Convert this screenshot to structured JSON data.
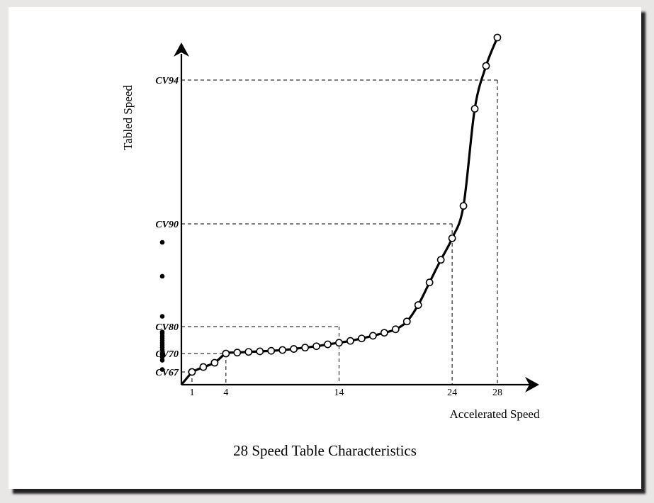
{
  "chart_data": {
    "type": "line",
    "title": "28 Speed Table Characteristics",
    "xlabel": "Accelerated Speed",
    "ylabel": "Tabled Speed",
    "x_ticks": [
      1,
      4,
      14,
      24,
      28
    ],
    "y_ticks": [
      {
        "label": "CV67",
        "value": 67
      },
      {
        "label": "CV70",
        "value": 70
      },
      {
        "label": "CV80",
        "value": 80
      },
      {
        "label": "CV90",
        "value": 90
      },
      {
        "label": "CV94",
        "value": 94
      }
    ],
    "xlim": [
      0,
      30
    ],
    "ylim": [
      65,
      98
    ],
    "guides": [
      {
        "x": 1,
        "y": 67
      },
      {
        "x": 4,
        "y": 70
      },
      {
        "x": 14,
        "y": 80
      },
      {
        "x": 24,
        "y": 90
      },
      {
        "x": 28,
        "y": 94
      }
    ],
    "series": [
      {
        "marker": "open-circle",
        "x": [
          1,
          2,
          3,
          4,
          5,
          6,
          7,
          8,
          9,
          10,
          11,
          12,
          13,
          14,
          15,
          16,
          17,
          18,
          19,
          20,
          21,
          22,
          23,
          24,
          25,
          26,
          27,
          28
        ],
        "y": [
          67.0,
          67.8,
          68.5,
          70.0,
          70.35,
          70.6,
          70.8,
          71.0,
          71.3,
          71.7,
          72.2,
          72.7,
          73.4,
          74.0,
          74.7,
          75.6,
          76.6,
          77.7,
          79.0,
          80.5,
          82.1,
          84.3,
          86.5,
          88.6,
          90.5,
          93.2,
          96.0,
          100.0
        ]
      }
    ],
    "y_axis_dots": [
      67.4,
      68.9,
      69.4,
      69.8,
      70.2,
      71.4,
      72.3,
      73.1,
      73.9,
      74.8,
      75.7,
      76.5,
      77.4,
      78.0,
      81.0,
      84.9,
      88.2
    ]
  }
}
